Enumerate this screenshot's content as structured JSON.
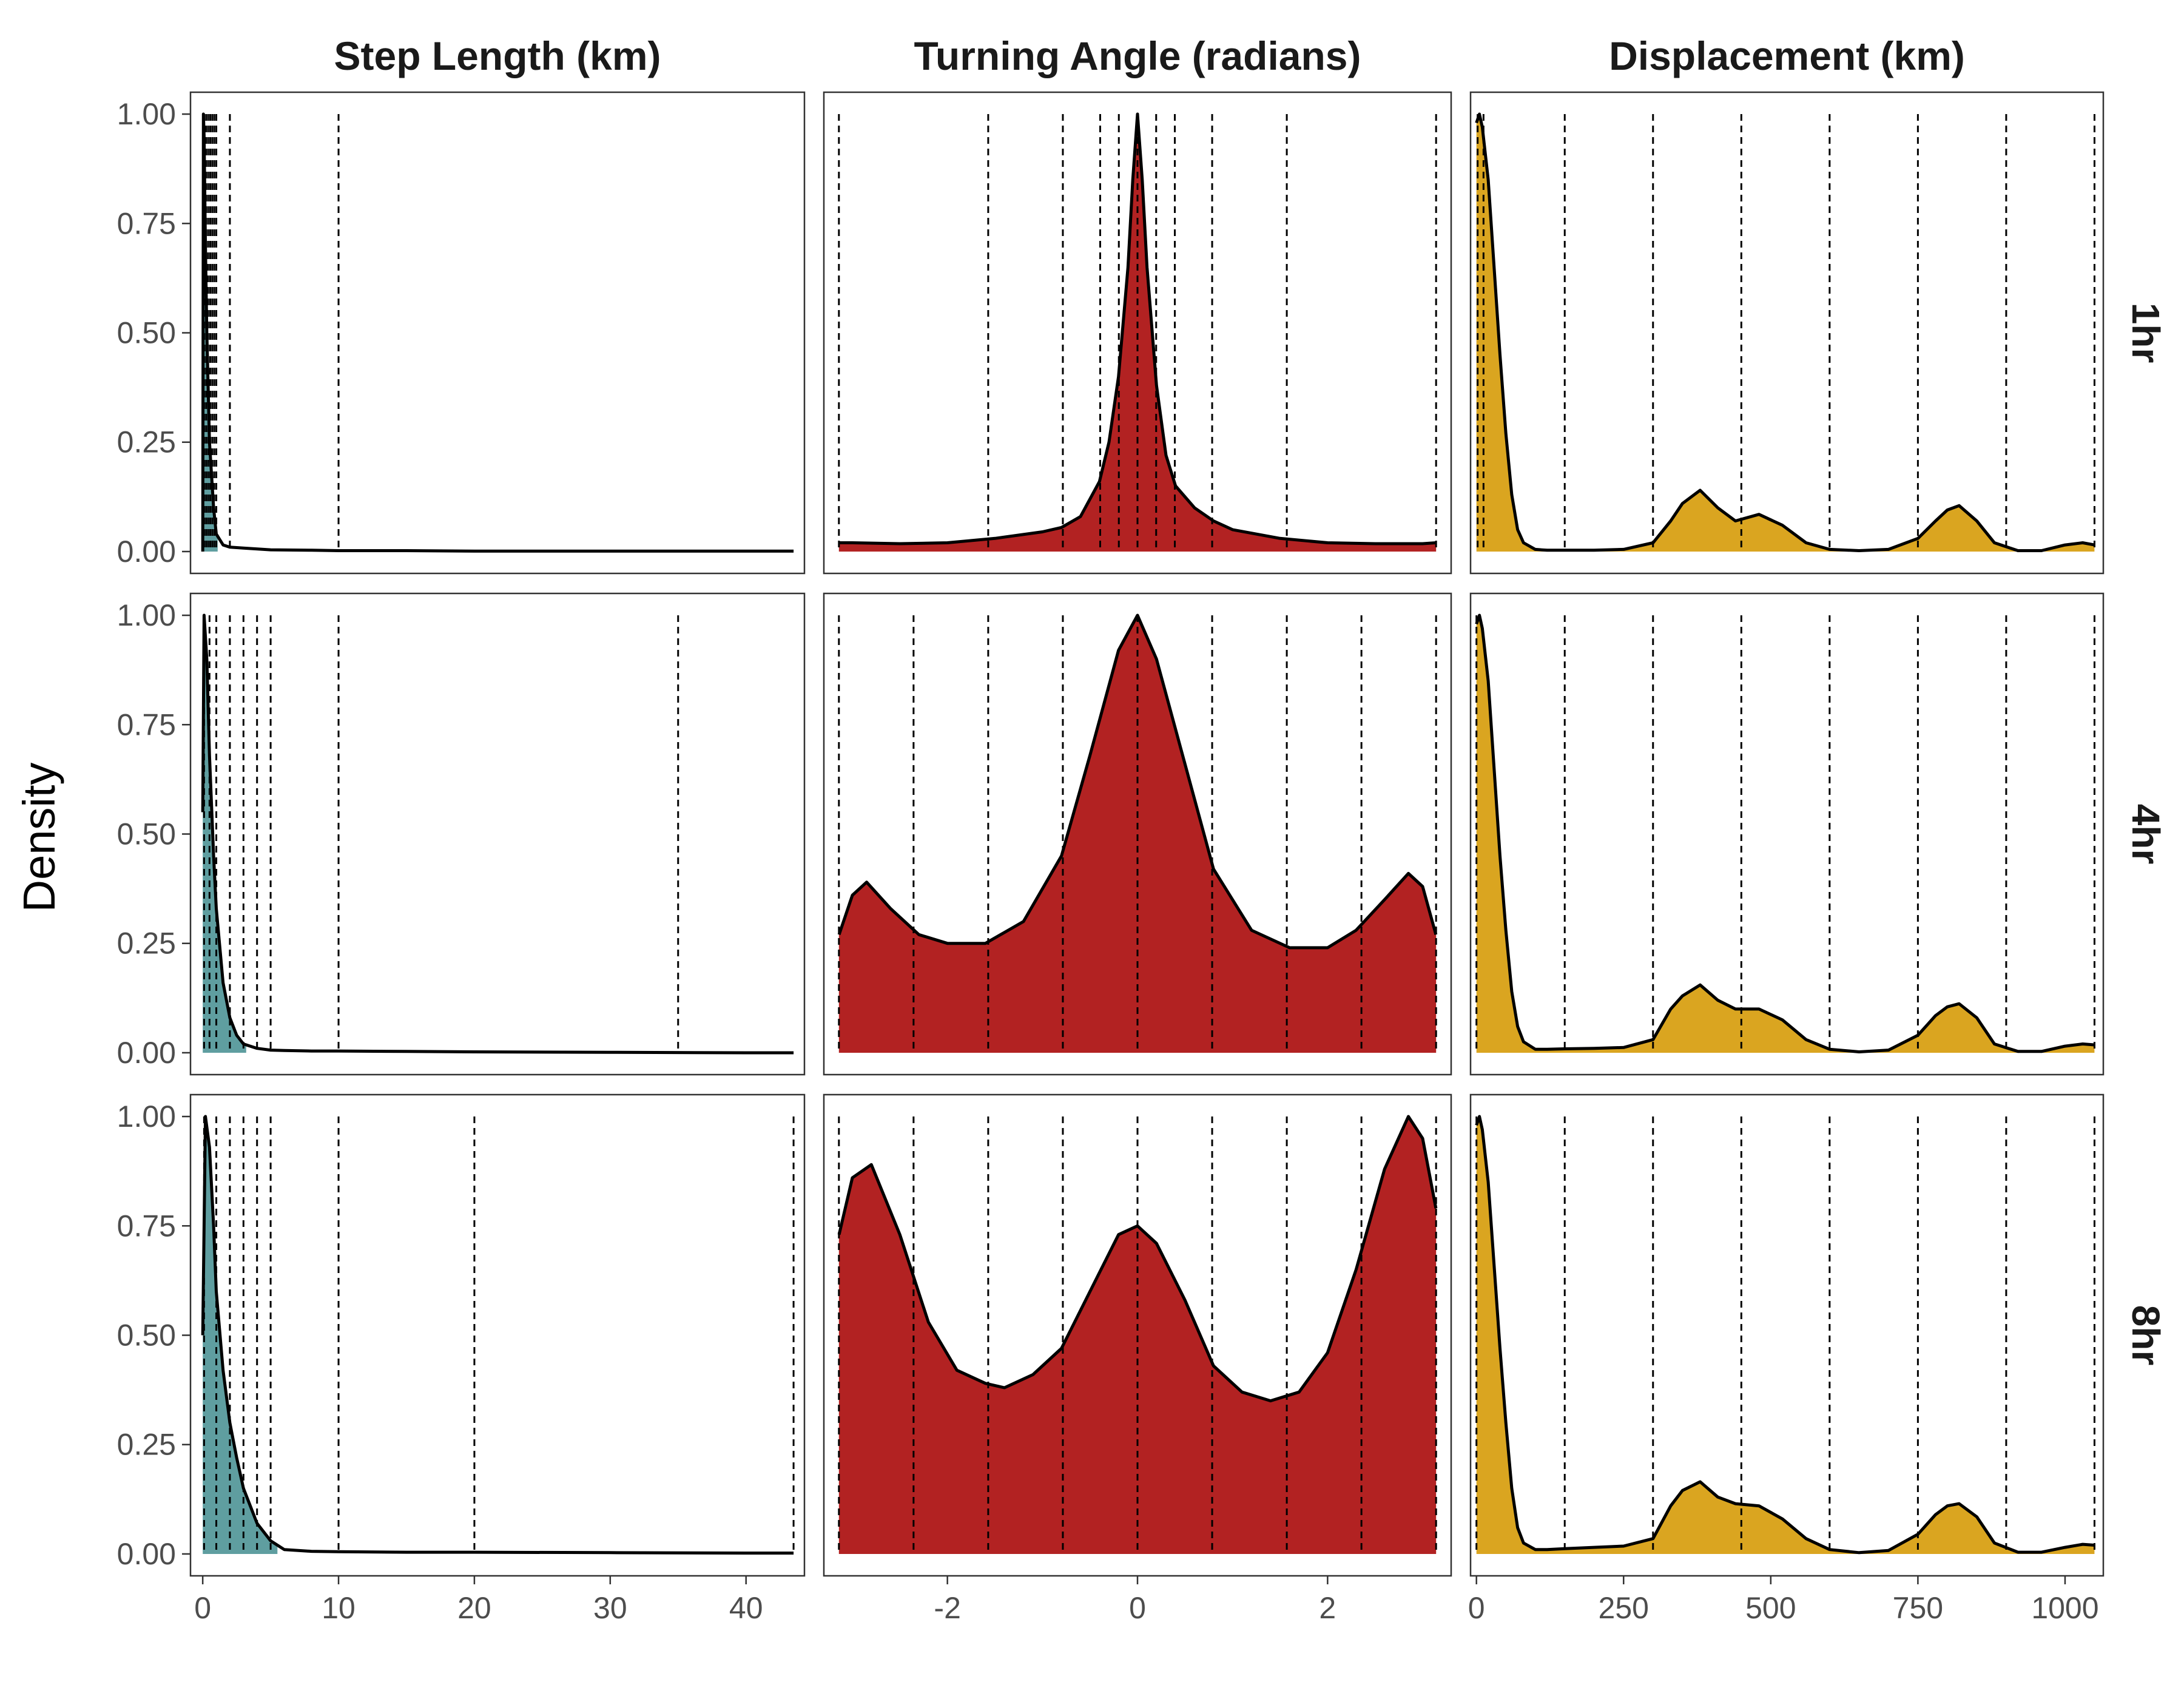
{
  "y_axis_label": "Density",
  "column_titles": [
    "Step Length (km)",
    "Turning Angle (radians)",
    "Displacement (km)"
  ],
  "row_titles": [
    "1hr",
    "4hr",
    "8hr"
  ],
  "colors": {
    "step_length": "#5F9EA0",
    "turning_angle": "#B22222",
    "displacement": "#DAA520",
    "curve": "#000000",
    "border": "#333333",
    "tick_label": "#4d4d4d"
  },
  "chart_data": {
    "type": "area",
    "layout": "facet-grid 3x3",
    "ylim": [
      0,
      1.0
    ],
    "y_ticks": [
      0,
      0.25,
      0.5,
      0.75,
      1.0
    ],
    "y_tick_labels": [
      "0.00",
      "0.25",
      "0.50",
      "0.75",
      "1.00"
    ],
    "columns": [
      {
        "name": "Step Length (km)",
        "xlim": [
          -0.9,
          44.3
        ],
        "x_ticks": [
          0,
          10,
          20,
          30,
          40
        ],
        "x_tick_labels": [
          "0",
          "10",
          "20",
          "30",
          "40"
        ],
        "rows": [
          {
            "row": "1hr",
            "fill_range": [
              0,
              1.1
            ],
            "vlines": [
              0.1,
              0.25,
              0.4,
              0.55,
              0.7,
              0.85,
              1.0,
              2.0,
              10.0
            ],
            "x": [
              0,
              0.05,
              0.1,
              0.2,
              0.3,
              0.5,
              0.8,
              1.0,
              1.5,
              2,
              3,
              5,
              8,
              10,
              15,
              20,
              30,
              40,
              43.5
            ],
            "y": [
              0.0,
              1.0,
              0.95,
              0.7,
              0.5,
              0.25,
              0.1,
              0.04,
              0.015,
              0.01,
              0.008,
              0.004,
              0.003,
              0.002,
              0.002,
              0.001,
              0.001,
              0.001,
              0.001
            ]
          },
          {
            "row": "4hr",
            "fill_range": [
              0,
              3.2
            ],
            "vlines": [
              0.1,
              0.5,
              1.0,
              2.0,
              3.0,
              4.0,
              5.0,
              10.0,
              35.0
            ],
            "x": [
              0,
              0.1,
              0.3,
              0.5,
              0.8,
              1.0,
              1.5,
              2,
              2.5,
              3,
              4,
              5,
              6,
              8,
              10,
              15,
              20,
              30,
              40,
              43.5
            ],
            "y": [
              0.55,
              1.0,
              0.9,
              0.68,
              0.45,
              0.33,
              0.16,
              0.08,
              0.04,
              0.02,
              0.01,
              0.006,
              0.005,
              0.004,
              0.004,
              0.003,
              0.002,
              0.001,
              0.0,
              0.0
            ]
          },
          {
            "row": "8hr",
            "fill_range": [
              0,
              5.5
            ],
            "vlines": [
              0.1,
              1.0,
              2.0,
              3.0,
              4.0,
              5.0,
              10.0,
              20.0,
              43.5
            ],
            "x": [
              0,
              0.2,
              0.5,
              0.8,
              1.0,
              1.5,
              2,
              2.5,
              3,
              4,
              5,
              5.5,
              6,
              8,
              10,
              15,
              20,
              30,
              40,
              43.5
            ],
            "y": [
              0.5,
              1.0,
              0.93,
              0.75,
              0.6,
              0.42,
              0.3,
              0.22,
              0.15,
              0.07,
              0.03,
              0.02,
              0.01,
              0.006,
              0.005,
              0.004,
              0.004,
              0.003,
              0.002,
              0.002
            ]
          }
        ]
      },
      {
        "name": "Turning Angle (radians)",
        "xlim": [
          -3.3,
          3.3
        ],
        "x_ticks": [
          -2,
          0,
          2
        ],
        "x_tick_labels": [
          "-2",
          "0",
          "2"
        ],
        "rows": [
          {
            "row": "1hr",
            "fill_range": [
              -3.14159,
              3.14159
            ],
            "vlines": [
              -3.1416,
              -1.5708,
              -0.7854,
              -0.3927,
              -0.19635,
              0,
              0.19635,
              0.3927,
              0.7854,
              1.5708,
              3.1416
            ],
            "x": [
              -3.14,
              -3.0,
              -2.5,
              -2.0,
              -1.5,
              -1.0,
              -0.8,
              -0.6,
              -0.4,
              -0.3,
              -0.2,
              -0.1,
              -0.05,
              0,
              0.05,
              0.1,
              0.2,
              0.3,
              0.4,
              0.6,
              0.8,
              1.0,
              1.5,
              2.0,
              2.5,
              3.0,
              3.14
            ],
            "y": [
              0.02,
              0.02,
              0.018,
              0.02,
              0.03,
              0.045,
              0.055,
              0.08,
              0.16,
              0.25,
              0.4,
              0.65,
              0.85,
              1.0,
              0.85,
              0.65,
              0.38,
              0.22,
              0.15,
              0.1,
              0.07,
              0.05,
              0.03,
              0.02,
              0.018,
              0.018,
              0.02
            ]
          },
          {
            "row": "4hr",
            "fill_range": [
              -3.14159,
              3.14159
            ],
            "vlines": [
              -3.1416,
              -2.3562,
              -1.5708,
              -0.7854,
              0,
              0.7854,
              1.5708,
              2.3562,
              3.1416
            ],
            "x": [
              -3.14,
              -3.0,
              -2.85,
              -2.6,
              -2.3,
              -2.0,
              -1.6,
              -1.2,
              -0.8,
              -0.5,
              -0.2,
              0,
              0.2,
              0.5,
              0.8,
              1.2,
              1.6,
              2.0,
              2.3,
              2.6,
              2.85,
              3.0,
              3.14
            ],
            "y": [
              0.27,
              0.36,
              0.39,
              0.33,
              0.27,
              0.25,
              0.25,
              0.3,
              0.45,
              0.68,
              0.92,
              1.0,
              0.9,
              0.66,
              0.42,
              0.28,
              0.24,
              0.24,
              0.28,
              0.35,
              0.41,
              0.38,
              0.27
            ]
          },
          {
            "row": "8hr",
            "fill_range": [
              -3.14159,
              3.14159
            ],
            "vlines": [
              -3.1416,
              -2.3562,
              -1.5708,
              -0.7854,
              0,
              0.7854,
              1.5708,
              2.3562,
              3.1416
            ],
            "x": [
              -3.14,
              -3.0,
              -2.8,
              -2.5,
              -2.2,
              -1.9,
              -1.6,
              -1.4,
              -1.1,
              -0.8,
              -0.5,
              -0.2,
              0,
              0.2,
              0.5,
              0.8,
              1.1,
              1.4,
              1.7,
              2.0,
              2.3,
              2.6,
              2.85,
              3.0,
              3.14
            ],
            "y": [
              0.73,
              0.86,
              0.89,
              0.73,
              0.53,
              0.42,
              0.39,
              0.38,
              0.41,
              0.47,
              0.6,
              0.73,
              0.75,
              0.71,
              0.58,
              0.43,
              0.37,
              0.35,
              0.37,
              0.46,
              0.65,
              0.88,
              1.0,
              0.95,
              0.79
            ]
          }
        ]
      },
      {
        "name": "Displacement (km)",
        "xlim": [
          -10,
          1065
        ],
        "x_ticks": [
          0,
          250,
          500,
          750,
          1000
        ],
        "x_tick_labels": [
          "0",
          "250",
          "500",
          "750",
          "1000"
        ],
        "rows": [
          {
            "row": "1hr",
            "fill_range": [
              0,
              1050
            ],
            "vlines": [
              2,
              12,
              150,
              300,
              450,
              600,
              750,
              900,
              1050
            ],
            "x": [
              0,
              5,
              10,
              20,
              30,
              40,
              50,
              60,
              70,
              80,
              100,
              120,
              150,
              200,
              250,
              300,
              330,
              350,
              380,
              410,
              440,
              480,
              520,
              560,
              600,
              650,
              700,
              750,
              780,
              800,
              820,
              850,
              880,
              920,
              960,
              1000,
              1030,
              1050
            ],
            "y": [
              0.98,
              1.0,
              0.97,
              0.85,
              0.65,
              0.45,
              0.27,
              0.13,
              0.05,
              0.02,
              0.005,
              0.003,
              0.003,
              0.003,
              0.005,
              0.02,
              0.07,
              0.11,
              0.14,
              0.1,
              0.07,
              0.085,
              0.06,
              0.02,
              0.005,
              0.002,
              0.005,
              0.03,
              0.07,
              0.095,
              0.105,
              0.07,
              0.02,
              0.002,
              0.002,
              0.015,
              0.02,
              0.015
            ]
          },
          {
            "row": "4hr",
            "fill_range": [
              0,
              1050
            ],
            "vlines": [
              0,
              150,
              300,
              450,
              600,
              750,
              900,
              1050
            ],
            "x": [
              0,
              5,
              10,
              20,
              30,
              40,
              50,
              60,
              70,
              80,
              100,
              120,
              150,
              200,
              250,
              300,
              330,
              350,
              380,
              410,
              440,
              480,
              520,
              560,
              600,
              650,
              700,
              750,
              780,
              800,
              820,
              850,
              880,
              920,
              960,
              1000,
              1030,
              1050
            ],
            "y": [
              0.98,
              1.0,
              0.97,
              0.85,
              0.65,
              0.45,
              0.28,
              0.14,
              0.06,
              0.025,
              0.008,
              0.008,
              0.009,
              0.01,
              0.012,
              0.03,
              0.1,
              0.13,
              0.155,
              0.12,
              0.1,
              0.1,
              0.075,
              0.03,
              0.008,
              0.002,
              0.006,
              0.04,
              0.085,
              0.105,
              0.112,
              0.08,
              0.02,
              0.003,
              0.003,
              0.015,
              0.02,
              0.018
            ]
          },
          {
            "row": "8hr",
            "fill_range": [
              0,
              1050
            ],
            "vlines": [
              0,
              150,
              300,
              450,
              600,
              750,
              900,
              1050
            ],
            "x": [
              0,
              5,
              10,
              20,
              30,
              40,
              50,
              60,
              70,
              80,
              100,
              120,
              150,
              200,
              250,
              300,
              330,
              350,
              380,
              410,
              440,
              480,
              520,
              560,
              600,
              650,
              700,
              750,
              780,
              800,
              820,
              850,
              880,
              920,
              960,
              1000,
              1030,
              1050
            ],
            "y": [
              0.98,
              1.0,
              0.97,
              0.85,
              0.66,
              0.47,
              0.3,
              0.15,
              0.06,
              0.025,
              0.01,
              0.01,
              0.012,
              0.015,
              0.018,
              0.035,
              0.11,
              0.145,
              0.165,
              0.13,
              0.115,
              0.11,
              0.08,
              0.035,
              0.01,
              0.003,
              0.008,
              0.045,
              0.09,
              0.11,
              0.115,
              0.085,
              0.025,
              0.004,
              0.004,
              0.015,
              0.022,
              0.02
            ]
          }
        ]
      }
    ]
  }
}
